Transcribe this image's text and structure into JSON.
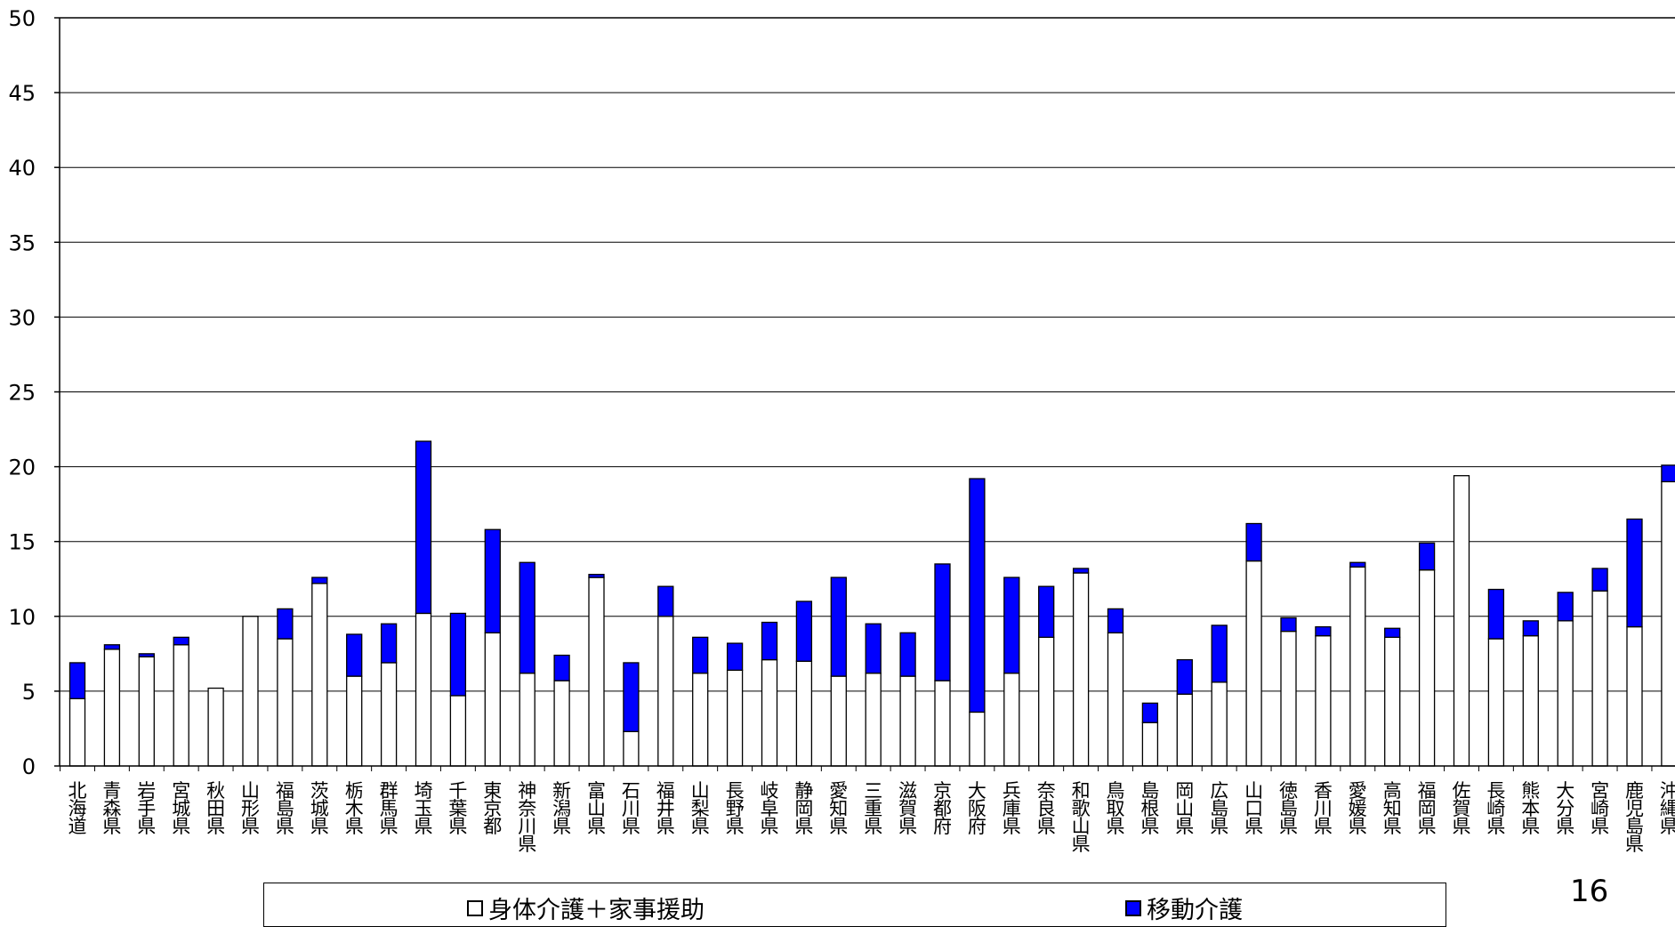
{
  "chart_data": {
    "type": "bar",
    "stacked": true,
    "ylim": [
      0,
      50
    ],
    "yticks": [
      0,
      5,
      10,
      15,
      20,
      25,
      30,
      35,
      40,
      45,
      50
    ],
    "grid": true,
    "categories": [
      "北海道",
      "青森県",
      "岩手県",
      "宮城県",
      "秋田県",
      "山形県",
      "福島県",
      "茨城県",
      "栃木県",
      "群馬県",
      "埼玉県",
      "千葉県",
      "東京都",
      "神奈川県",
      "新潟県",
      "富山県",
      "石川県",
      "福井県",
      "山梨県",
      "長野県",
      "岐阜県",
      "静岡県",
      "愛知県",
      "三重県",
      "滋賀県",
      "京都府",
      "大阪府",
      "兵庫県",
      "奈良県",
      "和歌山県",
      "鳥取県",
      "島根県",
      "岡山県",
      "広島県",
      "山口県",
      "徳島県",
      "香川県",
      "愛媛県",
      "高知県",
      "福岡県",
      "佐賀県",
      "長崎県",
      "熊本県",
      "大分県",
      "宮崎県",
      "鹿児島県",
      "沖縄県"
    ],
    "series": [
      {
        "name": "身体介護＋家事援助",
        "color": "#ffffff",
        "values": [
          4.5,
          7.8,
          7.3,
          8.1,
          5.2,
          10.0,
          8.5,
          12.2,
          6.0,
          6.9,
          10.2,
          4.7,
          8.9,
          6.2,
          5.7,
          12.6,
          2.3,
          10.0,
          6.2,
          6.4,
          7.1,
          7.0,
          6.0,
          6.2,
          6.0,
          5.7,
          3.6,
          6.2,
          8.6,
          12.9,
          8.9,
          2.9,
          4.8,
          5.6,
          13.7,
          9.0,
          8.7,
          13.3,
          8.6,
          13.1,
          19.4,
          8.5,
          8.7,
          9.7,
          11.7,
          9.3,
          19.0
        ]
      },
      {
        "name": "移動介護",
        "color": "#0000ff",
        "values": [
          2.4,
          0.3,
          0.2,
          0.5,
          0.0,
          0.0,
          2.0,
          0.4,
          2.8,
          2.6,
          11.5,
          5.5,
          6.9,
          7.4,
          1.7,
          0.2,
          4.6,
          2.0,
          2.4,
          1.8,
          2.5,
          4.0,
          6.6,
          3.3,
          2.9,
          7.8,
          15.6,
          6.4,
          3.4,
          0.3,
          1.6,
          1.3,
          2.3,
          3.8,
          2.5,
          0.9,
          0.6,
          0.3,
          0.6,
          1.8,
          0.0,
          3.3,
          1.0,
          1.9,
          1.5,
          7.2,
          1.1
        ]
      }
    ]
  },
  "page_number": "16"
}
